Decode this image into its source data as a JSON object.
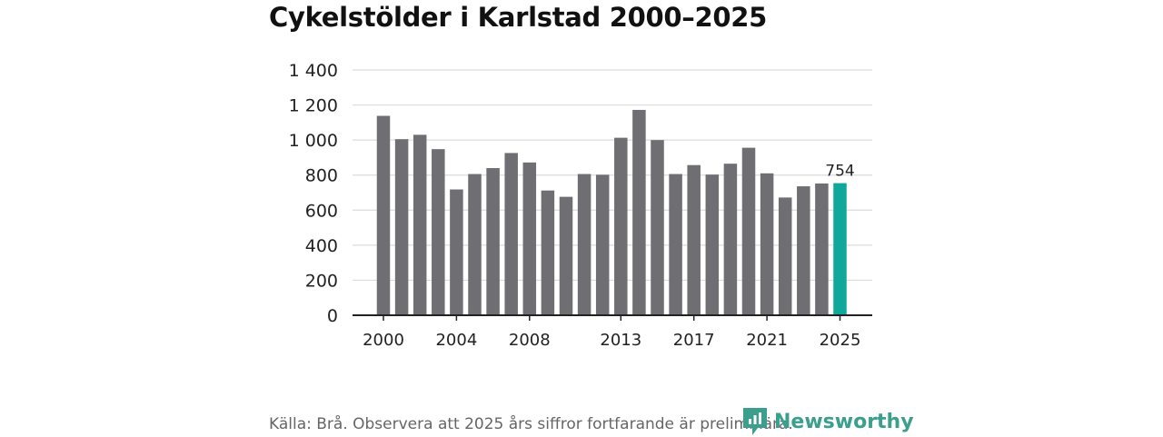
{
  "chart_data": {
    "type": "bar",
    "title": "Cykelstölder i Karlstad 2000–2025",
    "xlabel": "",
    "ylabel": "",
    "categories": [
      "2000",
      "2001",
      "2002",
      "2003",
      "2004",
      "2005",
      "2006",
      "2007",
      "2008",
      "2009",
      "2010",
      "2011",
      "2012",
      "2013",
      "2014",
      "2015",
      "2016",
      "2017",
      "2018",
      "2019",
      "2020",
      "2021",
      "2022",
      "2023",
      "2024",
      "2025"
    ],
    "values": [
      1138,
      1005,
      1030,
      948,
      718,
      806,
      840,
      926,
      872,
      712,
      676,
      806,
      802,
      1013,
      1172,
      1000,
      806,
      857,
      803,
      865,
      956,
      810,
      672,
      736,
      752,
      754
    ],
    "x_tick_labels": [
      "2000",
      "2004",
      "2008",
      "2013",
      "2017",
      "2021",
      "2025"
    ],
    "y_tick_labels": [
      "0",
      "200",
      "400",
      "600",
      "800",
      "1 000",
      "1 200",
      "1 400"
    ],
    "y_ticks": [
      0,
      200,
      400,
      600,
      800,
      1000,
      1200,
      1400
    ],
    "ylim": [
      0,
      1400
    ],
    "highlight": {
      "category": "2025",
      "label": "754"
    },
    "grid": true,
    "colors": {
      "bar": "#6e6e73",
      "highlight": "#0fa89a",
      "grid": "#dcdcdc",
      "axis": "#222222"
    }
  },
  "footer": {
    "source": "Källa: Brå. Observera att 2025 års siffror fortfarande är preliminära.",
    "brand": "Newsworthy",
    "brand_icon": "newsworthy-logo-icon",
    "brand_color": "#3a9f8c"
  }
}
